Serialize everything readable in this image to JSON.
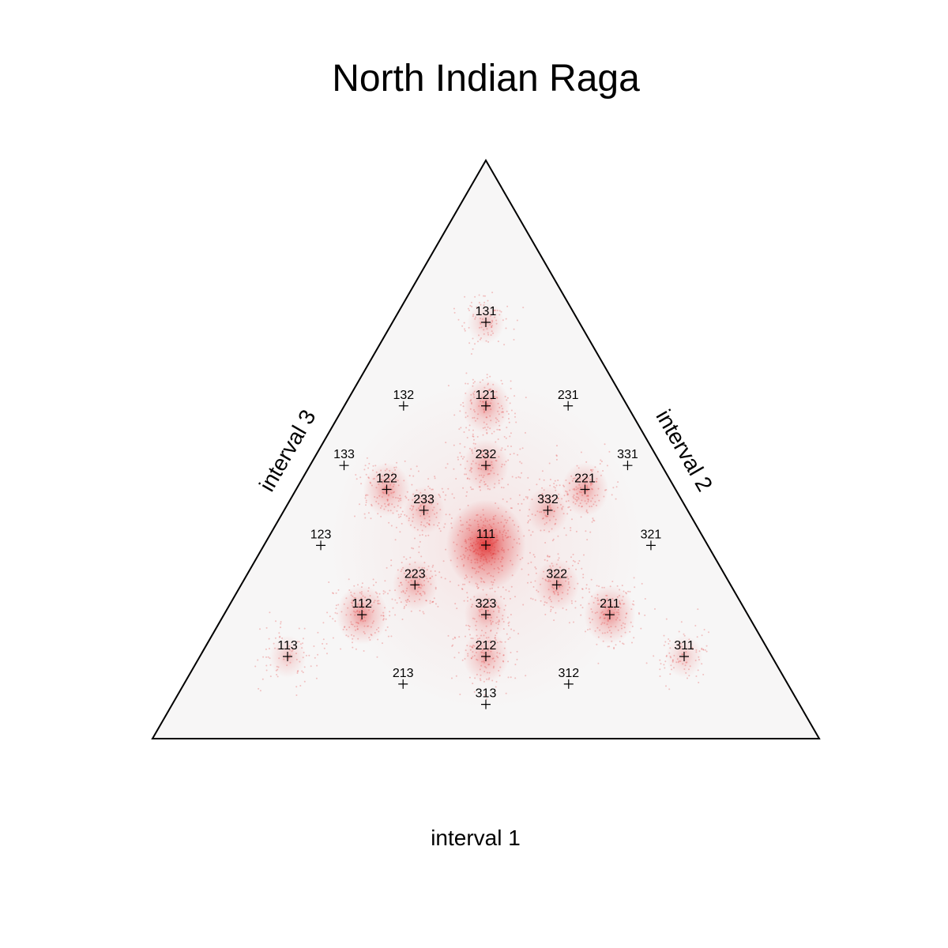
{
  "chart_data": {
    "type": "scatter",
    "subtype": "ternary-density",
    "title": "North Indian Raga",
    "axes": {
      "bottom": "interval 1",
      "right": "interval 2",
      "left": "interval 3"
    },
    "colors": {
      "triangle_fill": "#f7f6f6",
      "density": "#e02020",
      "outline": "#000000"
    },
    "density_clusters": [
      {
        "label": "111",
        "weight": 1.0
      },
      {
        "label": "121",
        "weight": 0.35
      },
      {
        "label": "232",
        "weight": 0.3
      },
      {
        "label": "122",
        "weight": 0.32
      },
      {
        "label": "221",
        "weight": 0.32
      },
      {
        "label": "112",
        "weight": 0.42
      },
      {
        "label": "211",
        "weight": 0.42
      },
      {
        "label": "223",
        "weight": 0.28
      },
      {
        "label": "322",
        "weight": 0.28
      },
      {
        "label": "323",
        "weight": 0.25
      },
      {
        "label": "212",
        "weight": 0.3
      },
      {
        "label": "233",
        "weight": 0.22
      },
      {
        "label": "332",
        "weight": 0.22
      },
      {
        "label": "131",
        "weight": 0.12
      },
      {
        "label": "113",
        "weight": 0.12
      },
      {
        "label": "311",
        "weight": 0.12
      }
    ],
    "points": [
      {
        "label": "131",
        "i1": 0.2,
        "i2": 0.6,
        "i3": 0.2
      },
      {
        "label": "132",
        "i1": 0.167,
        "i2": 0.5,
        "i3": 0.333
      },
      {
        "label": "121",
        "i1": 0.25,
        "i2": 0.5,
        "i3": 0.25
      },
      {
        "label": "231",
        "i1": 0.333,
        "i2": 0.5,
        "i3": 0.167
      },
      {
        "label": "133",
        "i1": 0.143,
        "i2": 0.429,
        "i3": 0.429
      },
      {
        "label": "232",
        "i1": 0.286,
        "i2": 0.429,
        "i3": 0.286
      },
      {
        "label": "331",
        "i1": 0.429,
        "i2": 0.429,
        "i3": 0.143
      },
      {
        "label": "122",
        "i1": 0.2,
        "i2": 0.4,
        "i3": 0.4
      },
      {
        "label": "221",
        "i1": 0.4,
        "i2": 0.4,
        "i3": 0.2
      },
      {
        "label": "233",
        "i1": 0.25,
        "i2": 0.375,
        "i3": 0.375
      },
      {
        "label": "332",
        "i1": 0.375,
        "i2": 0.375,
        "i3": 0.25
      },
      {
        "label": "123",
        "i1": 0.167,
        "i2": 0.333,
        "i3": 0.5
      },
      {
        "label": "111",
        "i1": 0.333,
        "i2": 0.333,
        "i3": 0.333
      },
      {
        "label": "321",
        "i1": 0.5,
        "i2": 0.333,
        "i3": 0.167
      },
      {
        "label": "223",
        "i1": 0.286,
        "i2": 0.286,
        "i3": 0.429
      },
      {
        "label": "322",
        "i1": 0.429,
        "i2": 0.286,
        "i3": 0.286
      },
      {
        "label": "112",
        "i1": 0.25,
        "i2": 0.25,
        "i3": 0.5
      },
      {
        "label": "323",
        "i1": 0.375,
        "i2": 0.25,
        "i3": 0.375
      },
      {
        "label": "211",
        "i1": 0.5,
        "i2": 0.25,
        "i3": 0.25
      },
      {
        "label": "113",
        "i1": 0.2,
        "i2": 0.2,
        "i3": 0.6
      },
      {
        "label": "212",
        "i1": 0.4,
        "i2": 0.2,
        "i3": 0.4
      },
      {
        "label": "311",
        "i1": 0.6,
        "i2": 0.2,
        "i3": 0.2
      },
      {
        "label": "213",
        "i1": 0.333,
        "i2": 0.167,
        "i3": 0.5
      },
      {
        "label": "312",
        "i1": 0.5,
        "i2": 0.167,
        "i3": 0.333
      },
      {
        "label": "313",
        "i1": 0.429,
        "i2": 0.143,
        "i3": 0.429
      }
    ]
  }
}
